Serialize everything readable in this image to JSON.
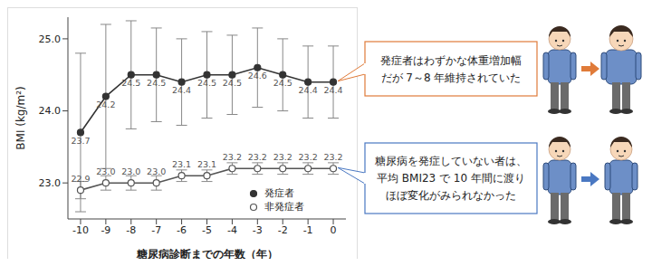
{
  "chart_data": {
    "type": "line",
    "xlabel": "糖尿病診断までの年数（年）",
    "ylabel": "BMI (kg/m²)",
    "x": [
      -10,
      -9,
      -8,
      -7,
      -6,
      -5,
      -4,
      -3,
      -2,
      -1,
      0
    ],
    "xlim": [
      -10.5,
      0.5
    ],
    "xticks": [
      -10,
      -9,
      -8,
      -7,
      -6,
      -5,
      -4,
      -3,
      -2,
      -1,
      0
    ],
    "ylim": [
      22.5,
      25.3
    ],
    "yticks": [
      {
        "value": 23,
        "label": "23.0"
      },
      {
        "value": 24,
        "label": "24.0"
      },
      {
        "value": 25,
        "label": "25.0"
      }
    ],
    "data_labels": true,
    "legend": "lower right",
    "series": [
      {
        "name": "発症者",
        "color": "#333333",
        "marker": "filled_circle",
        "line_style": "solid",
        "values": [
          23.7,
          24.2,
          24.5,
          24.5,
          24.4,
          24.5,
          24.5,
          24.6,
          24.5,
          24.4,
          24.4
        ],
        "value_labels": [
          "23.7",
          "24.2",
          "24.5",
          "24.5",
          "24.4",
          "24.5",
          "24.5",
          "24.6",
          "24.5",
          "24.4",
          "24.4"
        ],
        "error": [
          1.1,
          1.0,
          0.75,
          0.65,
          0.6,
          0.6,
          0.55,
          0.55,
          0.5,
          0.5,
          0.5
        ]
      },
      {
        "name": "非発症者",
        "color": "#555555",
        "marker": "open_circle",
        "line_style": "solid",
        "values": [
          22.9,
          23.0,
          23.0,
          23.0,
          23.1,
          23.1,
          23.2,
          23.2,
          23.2,
          23.2,
          23.2
        ],
        "value_labels": [
          "22.9",
          "23.0",
          "23.0",
          "23.0",
          "23.1",
          "23.1",
          "23.2",
          "23.2",
          "23.2",
          "23.2",
          "23.2"
        ],
        "error": [
          0.12,
          0.1,
          0.1,
          0.1,
          0.08,
          0.08,
          0.08,
          0.08,
          0.08,
          0.08,
          0.08
        ]
      }
    ],
    "annotations": [
      {
        "lines": [
          "発症者はわずかな体重増加幅",
          "だが 7～8 年維持されていた"
        ],
        "color": "#e07b39",
        "series": "発症者"
      },
      {
        "lines": [
          "糖尿病を発症していない者は、",
          "平均 BMI23 で 10 年間に渡り",
          "ほぼ変化がみられなかった"
        ],
        "color": "#4a78c2",
        "series": "非発症者"
      }
    ]
  }
}
